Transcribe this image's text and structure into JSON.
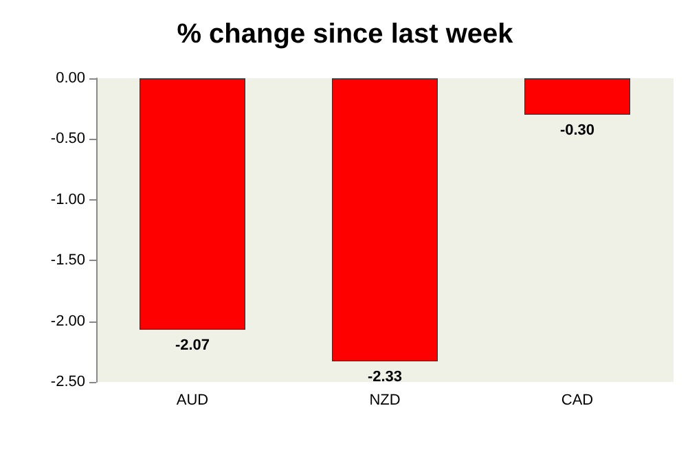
{
  "chart_data": {
    "type": "bar",
    "title": "% change since last week",
    "categories": [
      "AUD",
      "NZD",
      "CAD"
    ],
    "series": [
      {
        "color": "#ff0000",
        "values": [
          -2.07,
          -2.33,
          -0.3
        ],
        "value_labels": [
          "-2.07",
          "-2.33",
          "-0.30"
        ]
      }
    ],
    "ylim": [
      -2.5,
      0
    ],
    "yticks": [
      {
        "value": 0,
        "label": "0.00"
      },
      {
        "value": -0.5,
        "label": "-0.50"
      },
      {
        "value": -1,
        "label": "-1.00"
      },
      {
        "value": -1.5,
        "label": "-1.50"
      },
      {
        "value": -2,
        "label": "-2.00"
      },
      {
        "value": -2.5,
        "label": "-2.50"
      }
    ],
    "grid": false
  }
}
